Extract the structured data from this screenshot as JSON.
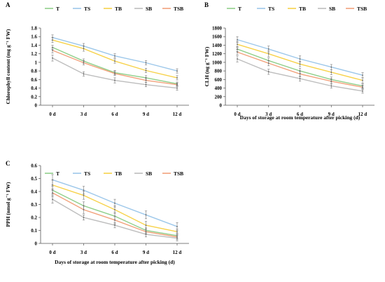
{
  "colors": {
    "T": "#8fcf8a",
    "TS": "#9cc7ea",
    "TB": "#f7d24a",
    "SB": "#bdbdbd",
    "TSB": "#f2a27c"
  },
  "chart_data": [
    {
      "panel": "A",
      "type": "line",
      "ylabel": "Chlorophyll content (mg g⁻¹ FW)",
      "xlabel": "",
      "categories": [
        "0 d",
        "3 d",
        "6 d",
        "9 d",
        "12 d"
      ],
      "ylim": [
        0,
        1.8
      ],
      "yticks": [
        "0",
        "0.2",
        "0.4",
        "0.6",
        "0.8",
        "1",
        "1.2",
        "1.4",
        "1.6",
        "1.8"
      ],
      "grid": false,
      "legend": "top",
      "series": [
        {
          "name": "T",
          "values": [
            1.35,
            1.03,
            0.76,
            0.64,
            0.5
          ],
          "errors": [
            0.05,
            0.05,
            0.05,
            0.05,
            0.04
          ]
        },
        {
          "name": "TS",
          "values": [
            1.58,
            1.38,
            1.15,
            0.99,
            0.8
          ],
          "errors": [
            0.06,
            0.06,
            0.05,
            0.05,
            0.05
          ]
        },
        {
          "name": "TB",
          "values": [
            1.52,
            1.32,
            1.03,
            0.81,
            0.64
          ],
          "errors": [
            0.06,
            0.06,
            0.05,
            0.05,
            0.05
          ]
        },
        {
          "name": "SB",
          "values": [
            1.1,
            0.73,
            0.58,
            0.48,
            0.4
          ],
          "errors": [
            0.07,
            0.05,
            0.06,
            0.05,
            0.05
          ]
        },
        {
          "name": "TSB",
          "values": [
            1.28,
            0.99,
            0.74,
            0.58,
            0.48
          ],
          "errors": [
            0.06,
            0.05,
            0.05,
            0.05,
            0.04
          ]
        }
      ]
    },
    {
      "panel": "B",
      "type": "line",
      "ylabel": "CLH (ng g⁻¹ FW)",
      "xlabel": "Days of storage at room temperature after picking (d)",
      "categories": [
        "0 d",
        "3 d",
        "6 d",
        "9 d",
        "12 d"
      ],
      "ylim": [
        0,
        1800
      ],
      "yticks": [
        "0",
        "200",
        "400",
        "600",
        "800",
        "1000",
        "1200",
        "1400",
        "1600",
        "1800"
      ],
      "grid": false,
      "legend": "top",
      "series": [
        {
          "name": "T",
          "values": [
            1310,
            1040,
            800,
            600,
            450
          ],
          "errors": [
            60,
            60,
            60,
            60,
            50
          ]
        },
        {
          "name": "TS",
          "values": [
            1530,
            1310,
            1080,
            890,
            700
          ],
          "errors": [
            70,
            70,
            70,
            60,
            60
          ]
        },
        {
          "name": "TB",
          "values": [
            1420,
            1200,
            960,
            770,
            580
          ],
          "errors": [
            70,
            70,
            60,
            60,
            60
          ]
        },
        {
          "name": "SB",
          "values": [
            1080,
            780,
            620,
            450,
            330
          ],
          "errors": [
            70,
            60,
            60,
            50,
            50
          ]
        },
        {
          "name": "TSB",
          "values": [
            1240,
            980,
            730,
            560,
            420
          ],
          "errors": [
            60,
            60,
            60,
            60,
            50
          ]
        }
      ]
    },
    {
      "panel": "C",
      "type": "line",
      "ylabel": "PPH (nmol g⁻¹ FW)",
      "xlabel": "Days of storage at room temperature after picking (d)",
      "categories": [
        "0 d",
        "3 d",
        "6 d",
        "9 d",
        "12 d"
      ],
      "ylim": [
        0,
        0.6
      ],
      "yticks": [
        "0",
        "0.1",
        "0.2",
        "0.3",
        "0.4",
        "0.5",
        "0.6"
      ],
      "grid": false,
      "legend": "top",
      "series": [
        {
          "name": "T",
          "values": [
            0.41,
            0.29,
            0.21,
            0.1,
            0.06
          ],
          "errors": [
            0.03,
            0.03,
            0.03,
            0.02,
            0.02
          ]
        },
        {
          "name": "TS",
          "values": [
            0.49,
            0.41,
            0.31,
            0.22,
            0.13
          ],
          "errors": [
            0.04,
            0.03,
            0.03,
            0.03,
            0.03
          ]
        },
        {
          "name": "TB",
          "values": [
            0.45,
            0.37,
            0.26,
            0.14,
            0.09
          ],
          "errors": [
            0.04,
            0.03,
            0.03,
            0.03,
            0.02
          ]
        },
        {
          "name": "SB",
          "values": [
            0.34,
            0.2,
            0.14,
            0.07,
            0.04
          ],
          "errors": [
            0.03,
            0.02,
            0.02,
            0.02,
            0.02
          ]
        },
        {
          "name": "TSB",
          "values": [
            0.39,
            0.26,
            0.18,
            0.09,
            0.05
          ],
          "errors": [
            0.03,
            0.03,
            0.03,
            0.02,
            0.02
          ]
        }
      ]
    }
  ]
}
